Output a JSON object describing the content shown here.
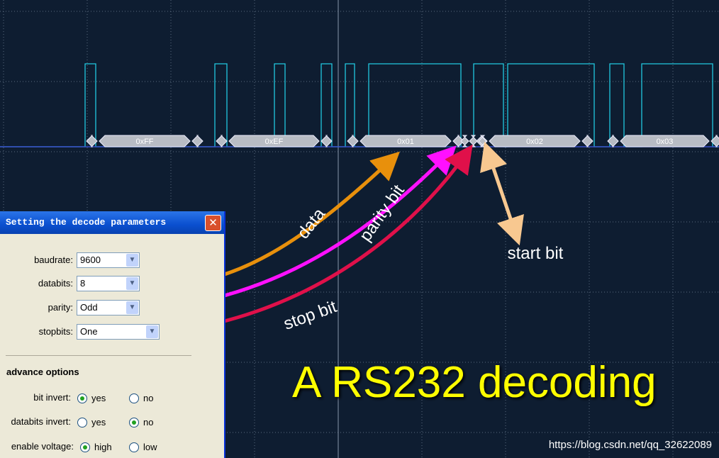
{
  "scope": {
    "decoded_bytes": [
      "0xFF",
      "0xEF",
      "0x01",
      "0x02",
      "0x03"
    ]
  },
  "annotations": [
    "data",
    "parity bit",
    "stop bit",
    "start bit"
  ],
  "title": "A RS232 decoding",
  "watermark": "https://blog.csdn.net/qq_32622089",
  "dialog": {
    "title": "Setting the decode parameters",
    "fields": [
      {
        "label": "baudrate:",
        "value": "9600"
      },
      {
        "label": "databits:",
        "value": "8"
      },
      {
        "label": "parity:",
        "value": "Odd"
      },
      {
        "label": "stopbits:",
        "value": "One"
      }
    ],
    "section": "advance options",
    "options": [
      {
        "label": "bit invert:",
        "choices": [
          "yes",
          "no"
        ],
        "selected": 0
      },
      {
        "label": "databits invert:",
        "choices": [
          "yes",
          "no"
        ],
        "selected": 1
      },
      {
        "label": "enable voltage:",
        "choices": [
          "high",
          "low"
        ],
        "selected": 0
      }
    ]
  }
}
